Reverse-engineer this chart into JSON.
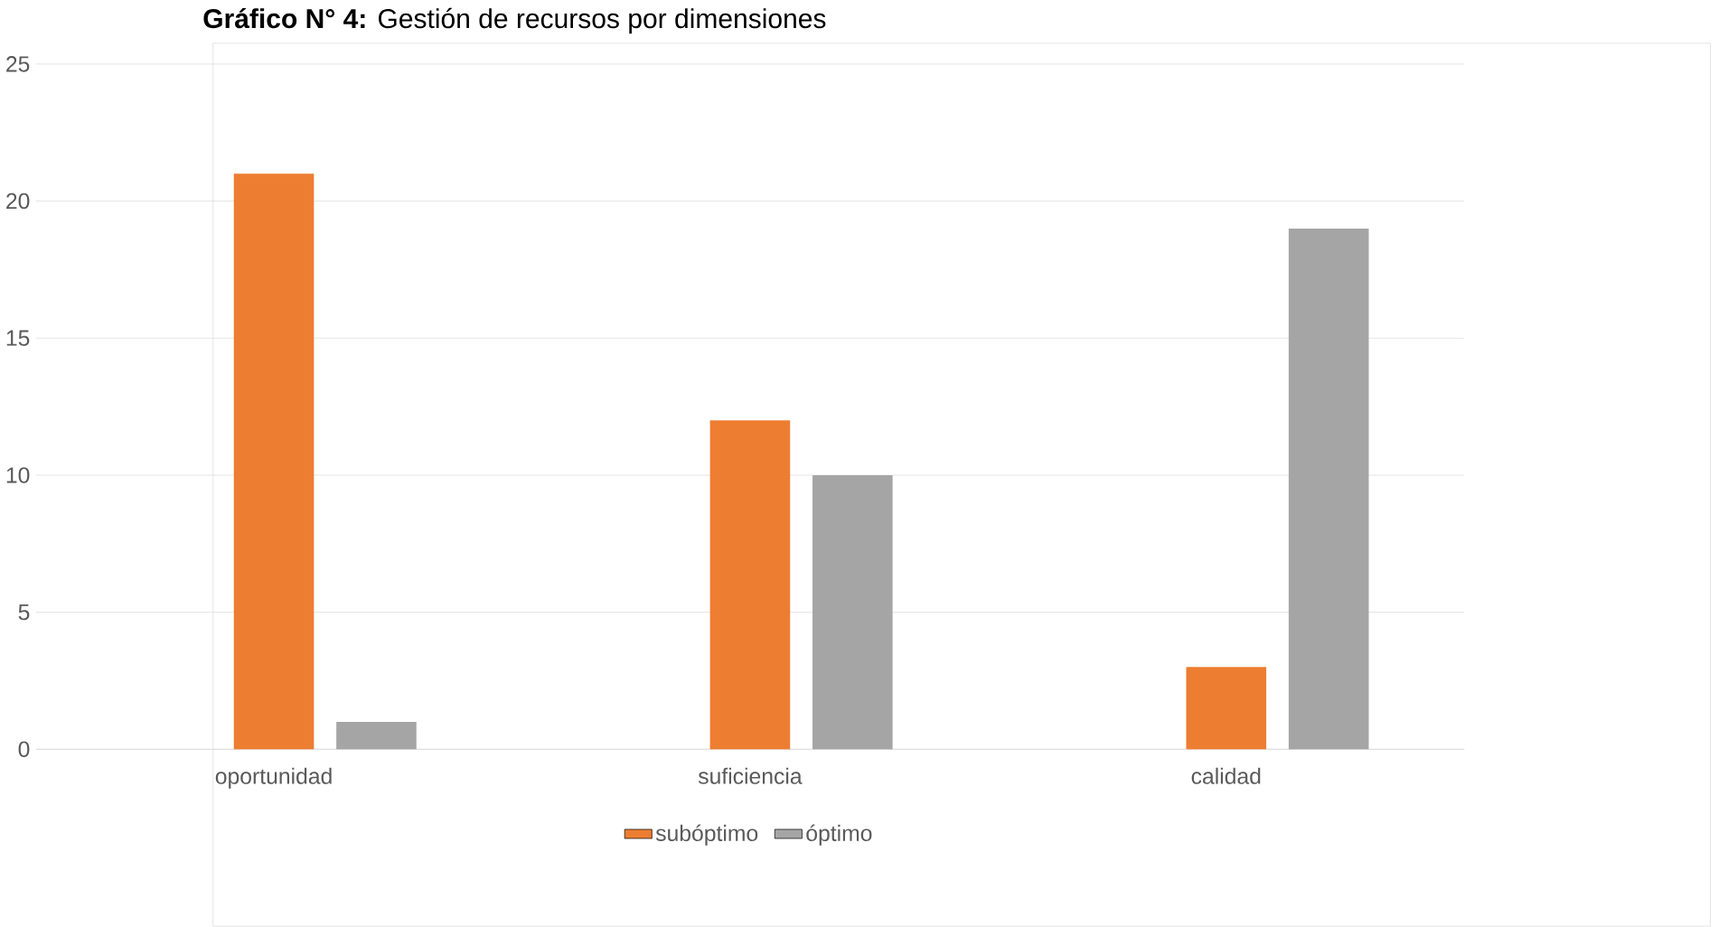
{
  "chart_data": {
    "type": "bar",
    "title": "**Gráfico N° 4:** Gestión de recursos por dimensiones",
    "categories": [
      "oportunidad",
      "suficiencia",
      "calidad"
    ],
    "series": [
      {
        "name": "subóptimo",
        "color": "#ed7d31",
        "values": [
          21,
          12,
          3
        ]
      },
      {
        "name": "óptimo",
        "color": "#a5a5a5",
        "values": [
          1,
          10,
          19
        ]
      }
    ],
    "ylim": [
      0,
      25
    ],
    "yticks": [
      0,
      5,
      10,
      15,
      20,
      25
    ],
    "grid": "y",
    "legend": "bottom"
  }
}
